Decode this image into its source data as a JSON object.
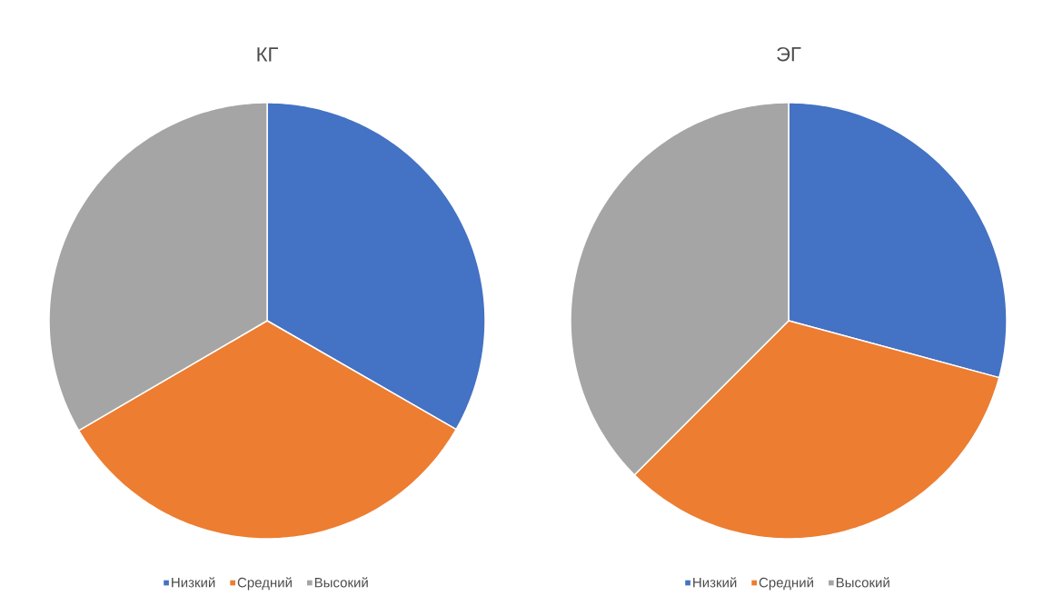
{
  "chart_data": [
    {
      "type": "pie",
      "title": "КГ",
      "categories": [
        "Низкий",
        "Средний",
        "Высокий"
      ],
      "values": [
        33.3,
        33.3,
        33.4
      ],
      "colors": [
        "#4472c4",
        "#ed7d31",
        "#a5a5a5"
      ],
      "legend": "bottom"
    },
    {
      "type": "pie",
      "title": "ЭГ",
      "categories": [
        "Низкий",
        "Средний",
        "Высокий"
      ],
      "values": [
        29.2,
        33.3,
        37.5
      ],
      "colors": [
        "#4472c4",
        "#ed7d31",
        "#a5a5a5"
      ],
      "legend": "bottom"
    }
  ]
}
